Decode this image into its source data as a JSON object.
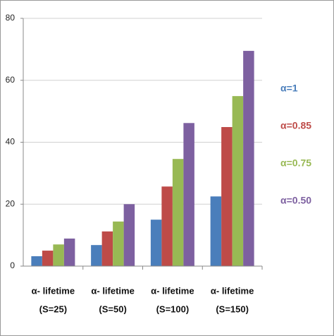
{
  "chart_data": {
    "type": "bar",
    "categories": [
      [
        "α- lifetime",
        "(S=25)"
      ],
      [
        "α- lifetime",
        "(S=50)"
      ],
      [
        "α- lifetime",
        "(S=100)"
      ],
      [
        "α- lifetime",
        "(S=150)"
      ]
    ],
    "series": [
      {
        "name": "α=1",
        "color": "#4a7ebb",
        "values": [
          3.2,
          6.8,
          15,
          22.5
        ]
      },
      {
        "name": "α=0.85",
        "color": "#be4b48",
        "values": [
          5,
          11.2,
          25.7,
          44.9
        ]
      },
      {
        "name": "α=0.75",
        "color": "#98b954",
        "values": [
          7,
          14.4,
          34.6,
          54.9
        ]
      },
      {
        "name": "α=0.50",
        "color": "#7d60a0",
        "values": [
          8.9,
          20,
          46.2,
          69.5
        ]
      }
    ],
    "ylim": [
      0,
      80
    ],
    "yticks": [
      0,
      20,
      40,
      60,
      80
    ],
    "grid": true,
    "legend": "right"
  }
}
